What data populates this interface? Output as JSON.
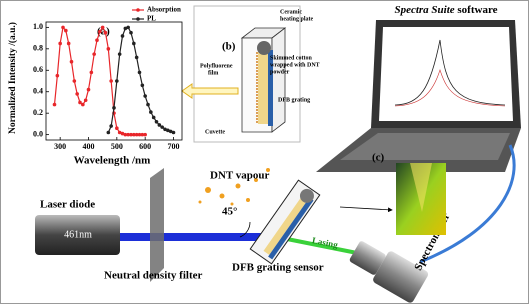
{
  "chart_data": {
    "type": "line",
    "panel_label": "(a)",
    "xlabel": "Wavelength /nm",
    "ylabel": "Normalized Intensity /(a.u.)",
    "xlim": [
      250,
      730
    ],
    "ylim": [
      -0.05,
      1.05
    ],
    "xticks": [
      300,
      400,
      500,
      600,
      700
    ],
    "yticks": [
      {
        "value": 0,
        "label": "0.0"
      },
      0.2,
      0.4,
      0.6,
      0.8,
      {
        "value": 1,
        "label": "1.0"
      }
    ],
    "legend": "upper right",
    "series": [
      {
        "name": "Absorption",
        "color": "#e8262a",
        "x": [
          280,
          290,
          300,
          310,
          320,
          330,
          340,
          350,
          360,
          370,
          380,
          390,
          400,
          410,
          420,
          430,
          440,
          450,
          460,
          470,
          480,
          490,
          500,
          510,
          520,
          530,
          540,
          550,
          560,
          570,
          580,
          590,
          600
        ],
        "values": [
          0.28,
          0.55,
          0.85,
          1.0,
          0.97,
          0.85,
          0.68,
          0.5,
          0.38,
          0.3,
          0.28,
          0.32,
          0.42,
          0.58,
          0.75,
          0.88,
          0.96,
          1.0,
          0.95,
          0.8,
          0.5,
          0.2,
          0.06,
          0.02,
          0.01,
          0,
          0,
          0,
          0,
          0,
          0,
          0,
          0
        ]
      },
      {
        "name": "PL",
        "color": "#222222",
        "x": [
          470,
          480,
          490,
          500,
          510,
          520,
          530,
          540,
          550,
          560,
          570,
          580,
          590,
          600,
          610,
          620,
          630,
          640,
          650,
          660,
          670,
          680,
          690,
          700
        ],
        "values": [
          0.02,
          0.08,
          0.25,
          0.5,
          0.75,
          0.92,
          0.99,
          1.0,
          0.95,
          0.85,
          0.72,
          0.58,
          0.46,
          0.36,
          0.28,
          0.21,
          0.16,
          0.12,
          0.09,
          0.07,
          0.05,
          0.04,
          0.03,
          0.02
        ]
      }
    ]
  },
  "panel_b": {
    "label": "(b)",
    "ceramic": [
      "Ceramic",
      "heating plate"
    ],
    "cotton": [
      "Skimmed cotton",
      "wrapped with DNT",
      "powder"
    ],
    "film": [
      "Polyfluorene",
      "film"
    ],
    "grating": "DFB grating",
    "cuvette": "Cuvette"
  },
  "software": {
    "italic": "Spectra Suite",
    "rest": " software"
  },
  "setup": {
    "laser": "Laser diode",
    "wavelength": "461nm",
    "filter": "Neutral density filter",
    "vapour": "DNT vapour",
    "angle": "45°",
    "lasing": "Lasing",
    "sensor": "DFB grating sensor",
    "spectrometer": "Spectrometer",
    "panel_c": "(c)"
  }
}
